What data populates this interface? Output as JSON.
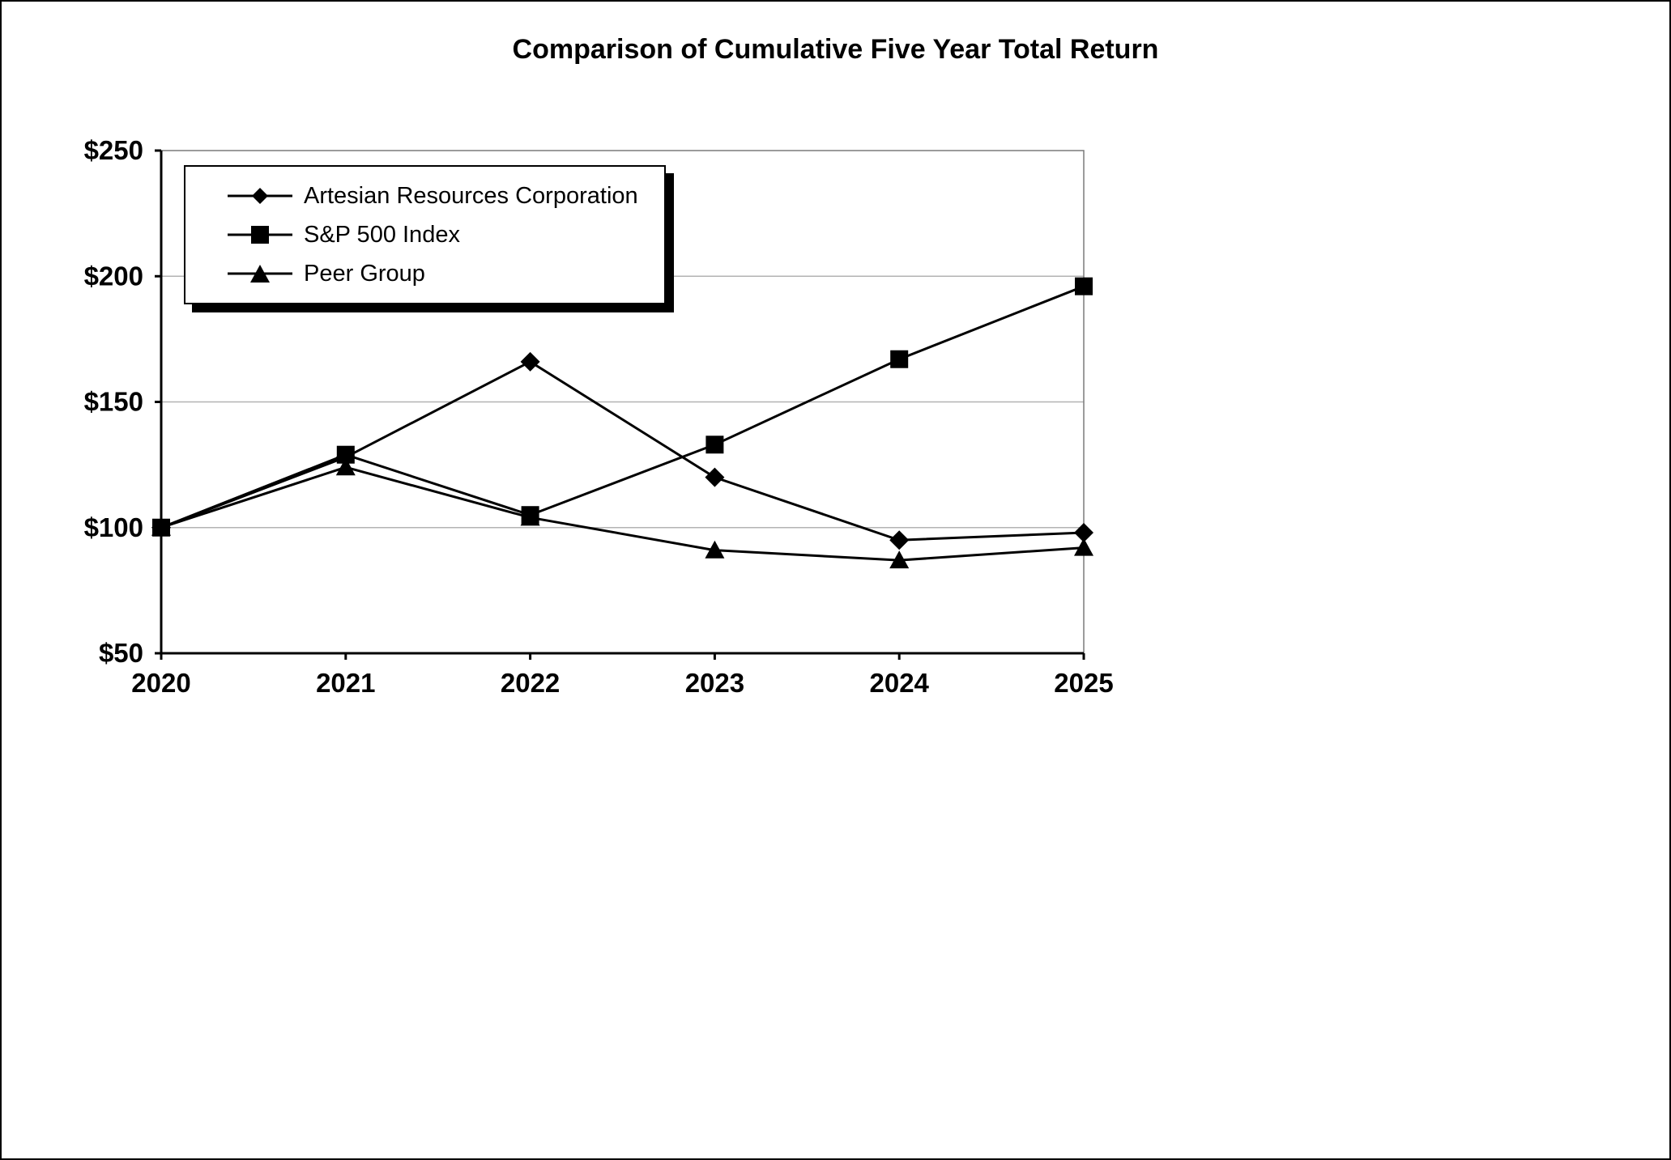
{
  "page": {
    "title": "Comparison of Cumulative Five Year Total Return"
  },
  "chart_data": {
    "type": "line",
    "title": "Comparison of Cumulative Five Year Total Return",
    "x": [
      2020,
      2021,
      2022,
      2023,
      2024,
      2025
    ],
    "series": [
      {
        "name": "Artesian Resources Corporation",
        "marker": "diamond",
        "values": [
          100,
          128,
          166,
          120,
          95,
          98
        ]
      },
      {
        "name": "S&P 500 Index",
        "marker": "square",
        "values": [
          100,
          129,
          105,
          133,
          167,
          196
        ]
      },
      {
        "name": "Peer Group",
        "marker": "triangle",
        "values": [
          100,
          124,
          104,
          91,
          87,
          92
        ]
      }
    ],
    "xlabel": "",
    "ylabel": "",
    "ylim": [
      50,
      250
    ],
    "yticks": [
      50,
      100,
      150,
      200,
      250
    ],
    "ytick_prefix": "$",
    "grid": true,
    "grid_color": "#b3b3b3",
    "line_color": "#000000",
    "legend_position": "top-left"
  }
}
